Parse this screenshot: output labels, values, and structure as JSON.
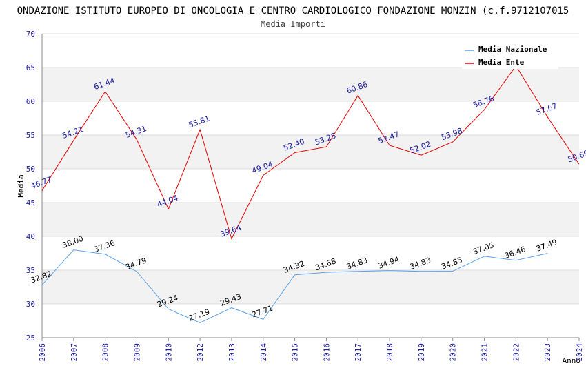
{
  "chart_data": {
    "type": "line",
    "title": "ONDAZIONE ISTITUTO EUROPEO DI ONCOLOGIA E CENTRO CARDIOLOGICO FONDAZIONE MONZIN (c.f.9712107015",
    "subtitle": "Media Importi",
    "xlabel": "Anno",
    "ylabel": "Media",
    "ylim": [
      25,
      70
    ],
    "yticks": [
      25,
      30,
      35,
      40,
      45,
      50,
      55,
      60,
      65,
      70
    ],
    "categories": [
      "2006",
      "2007",
      "2008",
      "2009",
      "2010",
      "2012",
      "2013",
      "2014",
      "2015",
      "2016",
      "2017",
      "2018",
      "2019",
      "2020",
      "2021",
      "2022",
      "2023",
      "2024"
    ],
    "legend_position": "top-right",
    "grid": true,
    "series": [
      {
        "name": "Media Nazionale",
        "color": "#5aa0e6",
        "values": [
          32.82,
          38.0,
          37.36,
          34.79,
          29.24,
          27.19,
          29.43,
          27.71,
          34.32,
          34.68,
          34.83,
          34.94,
          34.83,
          34.85,
          37.05,
          36.46,
          37.49,
          null
        ],
        "labels": [
          "32.82",
          "38.00",
          "37.36",
          "34.79",
          "29.24",
          "27.19",
          "29.43",
          "27.71",
          "34.32",
          "34.68",
          "34.83",
          "34.94",
          "34.83",
          "34.85",
          "37.05",
          "36.46",
          "37.49",
          null
        ],
        "label_color": "#000000"
      },
      {
        "name": "Media Ente",
        "color": "#e00000",
        "values": [
          46.77,
          54.21,
          61.44,
          54.31,
          44.04,
          55.81,
          39.64,
          49.04,
          52.4,
          53.25,
          60.86,
          53.47,
          52.02,
          53.98,
          58.76,
          65.24,
          57.67,
          50.69
        ],
        "labels": [
          "46.77",
          "54.21",
          "61.44",
          "54.31",
          "44.04",
          "55.81",
          "39.64",
          "49.04",
          "52.40",
          "53.25",
          "60.86",
          "53.47",
          "52.02",
          "53.98",
          "58.76",
          null,
          "57.67",
          "50.69"
        ],
        "label_color": "#1a1aa0"
      }
    ]
  }
}
